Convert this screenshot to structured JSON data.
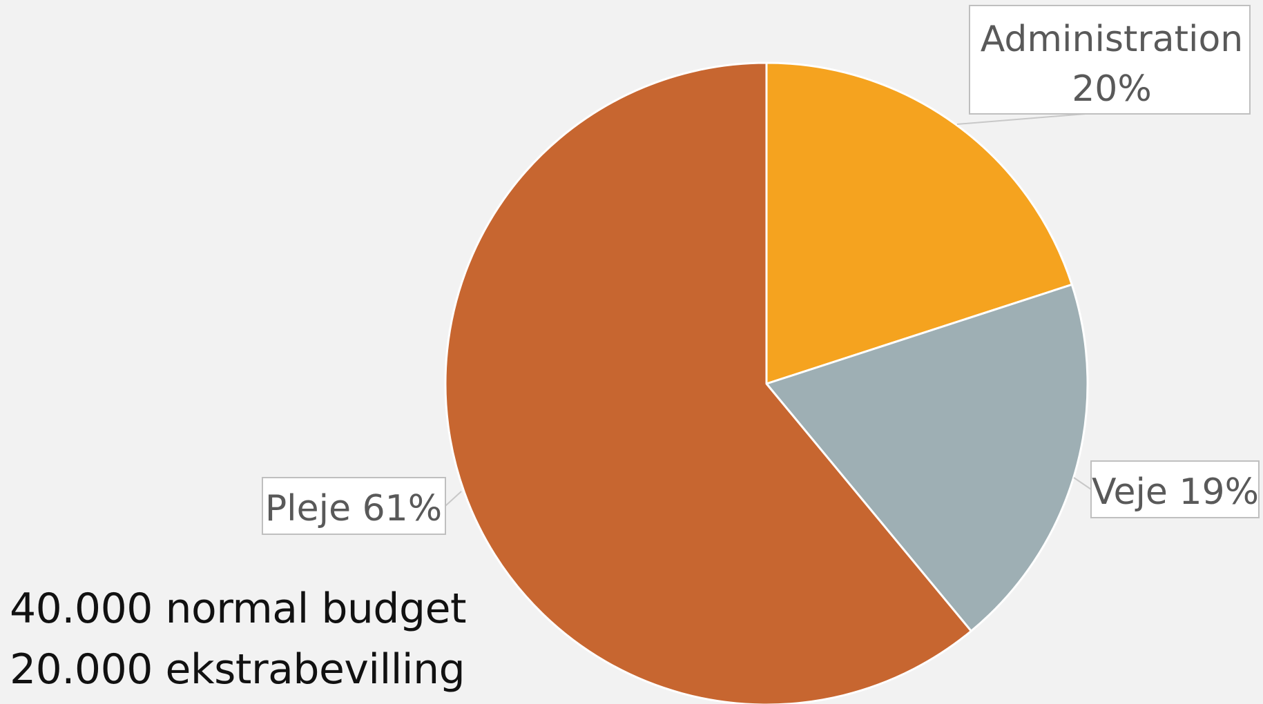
{
  "chart_data": {
    "type": "pie",
    "slices": [
      {
        "label": "Administration",
        "value_label": "20%",
        "value": 20,
        "color": "#f5a31f"
      },
      {
        "label": "Veje",
        "value_label": "19%",
        "value": 19,
        "color": "#9eafb4"
      },
      {
        "label": "Pleje",
        "value_label": "61%",
        "value": 61,
        "color": "#c76630"
      }
    ],
    "start_angle_deg": 0,
    "direction": "clockwise",
    "title": "",
    "legend": "none",
    "label_style": "callout boxes with leader lines"
  },
  "notes": {
    "line1": "40.000 normal budget",
    "line2": "20.000 ekstrabevilling"
  }
}
